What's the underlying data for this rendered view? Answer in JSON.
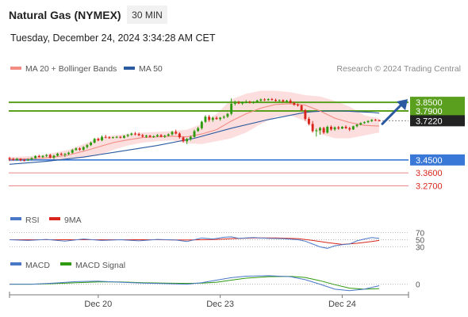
{
  "header": {
    "title": "Natural Gas (NYMEX)",
    "timeframe": "30 MIN",
    "timestamp": "Tuesday, December 24, 2024 3:34:28 AM CET",
    "credit": "Research © 2024 Trading Central"
  },
  "legend": [
    {
      "label": "MA 20 + Bollinger Bands",
      "color": "#f28b82"
    },
    {
      "label": "MA 50",
      "color": "#2b5aa0"
    }
  ],
  "colors": {
    "bull": "#2e9a0e",
    "bear": "#d9251c",
    "resistance": "#5aa01e",
    "support": "#3a78d8",
    "support_light": "#e88888",
    "band": "#fbd3d3",
    "ma20": "#f28b82",
    "ma50": "#2b5aa0",
    "last_price": "#222222",
    "forecast": "#2b5aa0"
  },
  "rsi": {
    "label": "RSI",
    "ma_label": "9MA",
    "levels": [
      "70",
      "50",
      "30"
    ]
  },
  "macd": {
    "label": "MACD",
    "signal_label": "MACD Signal",
    "levels": [
      "0"
    ]
  },
  "chart_data": {
    "type": "candlestick",
    "title": "Natural Gas (NYMEX)",
    "timeframe": "30 MIN",
    "x_ticks": [
      "Dec 20",
      "Dec 23",
      "Dec 24"
    ],
    "ylim": [
      3.24,
      3.9
    ],
    "levels": [
      {
        "value": 3.85,
        "label": "3.8500",
        "kind": "resistance",
        "style": "box"
      },
      {
        "value": 3.79,
        "label": "3.7900",
        "kind": "resistance",
        "style": "box"
      },
      {
        "value": 3.722,
        "label": "3.7220",
        "kind": "last",
        "style": "box"
      },
      {
        "value": 3.45,
        "label": "3.4500",
        "kind": "support",
        "style": "box"
      },
      {
        "value": 3.36,
        "label": "3.3600",
        "kind": "support_light",
        "style": "text"
      },
      {
        "value": 3.27,
        "label": "3.2700",
        "kind": "support_light",
        "style": "text"
      }
    ],
    "candles": [
      [
        3.463,
        3.472,
        3.443,
        3.456
      ],
      [
        3.456,
        3.465,
        3.445,
        3.451
      ],
      [
        3.451,
        3.464,
        3.444,
        3.458
      ],
      [
        3.458,
        3.462,
        3.441,
        3.448
      ],
      [
        3.448,
        3.458,
        3.44,
        3.447
      ],
      [
        3.447,
        3.461,
        3.442,
        3.453
      ],
      [
        3.453,
        3.469,
        3.448,
        3.462
      ],
      [
        3.462,
        3.483,
        3.457,
        3.477
      ],
      [
        3.477,
        3.486,
        3.466,
        3.47
      ],
      [
        3.47,
        3.483,
        3.464,
        3.478
      ],
      [
        3.478,
        3.491,
        3.47,
        3.484
      ],
      [
        3.484,
        3.492,
        3.46,
        3.467
      ],
      [
        3.467,
        3.485,
        3.454,
        3.48
      ],
      [
        3.48,
        3.5,
        3.474,
        3.493
      ],
      [
        3.493,
        3.501,
        3.481,
        3.487
      ],
      [
        3.487,
        3.498,
        3.47,
        3.492
      ],
      [
        3.492,
        3.507,
        3.483,
        3.5
      ],
      [
        3.5,
        3.527,
        3.493,
        3.519
      ],
      [
        3.519,
        3.537,
        3.514,
        3.53
      ],
      [
        3.53,
        3.537,
        3.513,
        3.521
      ],
      [
        3.521,
        3.545,
        3.513,
        3.539
      ],
      [
        3.539,
        3.56,
        3.53,
        3.553
      ],
      [
        3.553,
        3.577,
        3.546,
        3.57
      ],
      [
        3.57,
        3.603,
        3.565,
        3.596
      ],
      [
        3.596,
        3.605,
        3.58,
        3.586
      ],
      [
        3.586,
        3.62,
        3.58,
        3.61
      ],
      [
        3.61,
        3.624,
        3.6,
        3.607
      ],
      [
        3.607,
        3.615,
        3.597,
        3.603
      ],
      [
        3.603,
        3.612,
        3.598,
        3.608
      ],
      [
        3.608,
        3.616,
        3.601,
        3.61
      ],
      [
        3.61,
        3.616,
        3.599,
        3.604
      ],
      [
        3.604,
        3.623,
        3.599,
        3.617
      ],
      [
        3.617,
        3.632,
        3.608,
        3.624
      ],
      [
        3.624,
        3.64,
        3.618,
        3.633
      ],
      [
        3.633,
        3.644,
        3.62,
        3.63
      ],
      [
        3.63,
        3.64,
        3.615,
        3.621
      ],
      [
        3.621,
        3.631,
        3.607,
        3.612
      ],
      [
        3.612,
        3.625,
        3.603,
        3.619
      ],
      [
        3.619,
        3.624,
        3.606,
        3.61
      ],
      [
        3.61,
        3.621,
        3.603,
        3.614
      ],
      [
        3.614,
        3.63,
        3.608,
        3.622
      ],
      [
        3.622,
        3.63,
        3.607,
        3.611
      ],
      [
        3.611,
        3.625,
        3.603,
        3.618
      ],
      [
        3.618,
        3.634,
        3.613,
        3.628
      ],
      [
        3.628,
        3.652,
        3.62,
        3.645
      ],
      [
        3.645,
        3.66,
        3.627,
        3.633
      ],
      [
        3.633,
        3.641,
        3.598,
        3.607
      ],
      [
        3.607,
        3.612,
        3.571,
        3.58
      ],
      [
        3.58,
        3.603,
        3.56,
        3.596
      ],
      [
        3.596,
        3.618,
        3.583,
        3.61
      ],
      [
        3.61,
        3.66,
        3.605,
        3.65
      ],
      [
        3.65,
        3.68,
        3.645,
        3.67
      ],
      [
        3.67,
        3.722,
        3.66,
        3.715
      ],
      [
        3.715,
        3.76,
        3.708,
        3.75
      ],
      [
        3.75,
        3.762,
        3.715,
        3.728
      ],
      [
        3.728,
        3.75,
        3.715,
        3.742
      ],
      [
        3.742,
        3.753,
        3.729,
        3.734
      ],
      [
        3.734,
        3.748,
        3.722,
        3.744
      ],
      [
        3.744,
        3.76,
        3.735,
        3.75
      ],
      [
        3.75,
        3.776,
        3.742,
        3.77
      ],
      [
        3.77,
        3.877,
        3.76,
        3.84
      ],
      [
        3.84,
        3.862,
        3.828,
        3.848
      ],
      [
        3.848,
        3.86,
        3.838,
        3.842
      ],
      [
        3.842,
        3.855,
        3.832,
        3.85
      ],
      [
        3.85,
        3.866,
        3.843,
        3.853
      ],
      [
        3.853,
        3.861,
        3.842,
        3.848
      ],
      [
        3.848,
        3.858,
        3.84,
        3.853
      ],
      [
        3.853,
        3.868,
        3.848,
        3.862
      ],
      [
        3.862,
        3.876,
        3.855,
        3.87
      ],
      [
        3.87,
        3.878,
        3.859,
        3.865
      ],
      [
        3.865,
        3.878,
        3.86,
        3.872
      ],
      [
        3.872,
        3.88,
        3.862,
        3.867
      ],
      [
        3.867,
        3.875,
        3.855,
        3.86
      ],
      [
        3.86,
        3.87,
        3.852,
        3.865
      ],
      [
        3.865,
        3.87,
        3.85,
        3.855
      ],
      [
        3.855,
        3.868,
        3.849,
        3.862
      ],
      [
        3.862,
        3.874,
        3.842,
        3.846
      ],
      [
        3.846,
        3.853,
        3.826,
        3.833
      ],
      [
        3.833,
        3.842,
        3.82,
        3.828
      ],
      [
        3.828,
        3.834,
        3.79,
        3.795
      ],
      [
        3.795,
        3.803,
        3.722,
        3.735
      ],
      [
        3.735,
        3.748,
        3.69,
        3.7
      ],
      [
        3.7,
        3.72,
        3.64,
        3.65
      ],
      [
        3.65,
        3.668,
        3.612,
        3.655
      ],
      [
        3.655,
        3.68,
        3.625,
        3.672
      ],
      [
        3.672,
        3.68,
        3.63,
        3.64
      ],
      [
        3.64,
        3.688,
        3.633,
        3.68
      ],
      [
        3.68,
        3.69,
        3.652,
        3.662
      ],
      [
        3.662,
        3.682,
        3.652,
        3.676
      ],
      [
        3.676,
        3.686,
        3.66,
        3.668
      ],
      [
        3.668,
        3.685,
        3.664,
        3.68
      ],
      [
        3.68,
        3.69,
        3.665,
        3.67
      ],
      [
        3.67,
        3.68,
        3.65,
        3.662
      ],
      [
        3.662,
        3.688,
        3.658,
        3.684
      ],
      [
        3.684,
        3.7,
        3.676,
        3.695
      ],
      [
        3.695,
        3.712,
        3.69,
        3.706
      ],
      [
        3.706,
        3.718,
        3.7,
        3.712
      ],
      [
        3.712,
        3.726,
        3.706,
        3.72
      ],
      [
        3.72,
        3.733,
        3.714,
        3.728
      ],
      [
        3.728,
        3.735,
        3.72,
        3.726
      ],
      [
        3.726,
        3.73,
        3.717,
        3.722
      ]
    ],
    "ma20": [
      [
        0,
        3.455
      ],
      [
        8,
        3.46
      ],
      [
        12,
        3.47
      ],
      [
        16,
        3.485
      ],
      [
        20,
        3.51
      ],
      [
        24,
        3.54
      ],
      [
        28,
        3.57
      ],
      [
        32,
        3.59
      ],
      [
        36,
        3.605
      ],
      [
        40,
        3.61
      ],
      [
        44,
        3.615
      ],
      [
        48,
        3.61
      ],
      [
        52,
        3.63
      ],
      [
        56,
        3.66
      ],
      [
        60,
        3.72
      ],
      [
        64,
        3.77
      ],
      [
        68,
        3.81
      ],
      [
        72,
        3.835
      ],
      [
        76,
        3.84
      ],
      [
        80,
        3.83
      ],
      [
        84,
        3.79
      ],
      [
        88,
        3.74
      ],
      [
        92,
        3.71
      ],
      [
        96,
        3.69
      ],
      [
        100,
        3.685
      ]
    ],
    "band_upper": [
      [
        0,
        3.47
      ],
      [
        8,
        3.48
      ],
      [
        12,
        3.5
      ],
      [
        16,
        3.52
      ],
      [
        20,
        3.56
      ],
      [
        24,
        3.6
      ],
      [
        28,
        3.62
      ],
      [
        32,
        3.63
      ],
      [
        36,
        3.64
      ],
      [
        40,
        3.645
      ],
      [
        44,
        3.65
      ],
      [
        48,
        3.66
      ],
      [
        52,
        3.7
      ],
      [
        56,
        3.77
      ],
      [
        60,
        3.87
      ],
      [
        64,
        3.91
      ],
      [
        68,
        3.93
      ],
      [
        72,
        3.93
      ],
      [
        76,
        3.92
      ],
      [
        80,
        3.9
      ],
      [
        84,
        3.89
      ],
      [
        88,
        3.86
      ],
      [
        92,
        3.82
      ],
      [
        96,
        3.76
      ],
      [
        100,
        3.74
      ]
    ],
    "band_lower": [
      [
        0,
        3.44
      ],
      [
        8,
        3.445
      ],
      [
        12,
        3.45
      ],
      [
        16,
        3.455
      ],
      [
        20,
        3.465
      ],
      [
        24,
        3.48
      ],
      [
        28,
        3.52
      ],
      [
        32,
        3.55
      ],
      [
        36,
        3.57
      ],
      [
        40,
        3.58
      ],
      [
        44,
        3.585
      ],
      [
        48,
        3.565
      ],
      [
        52,
        3.56
      ],
      [
        56,
        3.58
      ],
      [
        60,
        3.6
      ],
      [
        64,
        3.64
      ],
      [
        68,
        3.7
      ],
      [
        72,
        3.75
      ],
      [
        76,
        3.76
      ],
      [
        80,
        3.72
      ],
      [
        84,
        3.63
      ],
      [
        88,
        3.6
      ],
      [
        92,
        3.6
      ],
      [
        96,
        3.62
      ],
      [
        100,
        3.64
      ]
    ],
    "ma50": [
      [
        0,
        3.42
      ],
      [
        10,
        3.44
      ],
      [
        20,
        3.47
      ],
      [
        30,
        3.51
      ],
      [
        40,
        3.55
      ],
      [
        50,
        3.6
      ],
      [
        60,
        3.67
      ],
      [
        70,
        3.73
      ],
      [
        80,
        3.78
      ],
      [
        82,
        3.785
      ],
      [
        86,
        3.79
      ],
      [
        90,
        3.79
      ],
      [
        94,
        3.785
      ],
      [
        98,
        3.78
      ],
      [
        100,
        3.775
      ]
    ],
    "rsi_series": [
      [
        0,
        50
      ],
      [
        5,
        48
      ],
      [
        10,
        51
      ],
      [
        15,
        46
      ],
      [
        20,
        52
      ],
      [
        25,
        48
      ],
      [
        30,
        50
      ],
      [
        35,
        47
      ],
      [
        40,
        51
      ],
      [
        45,
        49
      ],
      [
        48,
        45
      ],
      [
        52,
        55
      ],
      [
        55,
        52
      ],
      [
        58,
        57
      ],
      [
        60,
        58
      ],
      [
        62,
        54
      ],
      [
        66,
        56
      ],
      [
        70,
        54
      ],
      [
        74,
        53
      ],
      [
        78,
        50
      ],
      [
        80,
        46
      ],
      [
        82,
        38
      ],
      [
        84,
        30
      ],
      [
        86,
        26
      ],
      [
        88,
        33
      ],
      [
        90,
        36
      ],
      [
        92,
        38
      ],
      [
        94,
        47
      ],
      [
        96,
        52
      ],
      [
        98,
        56
      ],
      [
        100,
        54
      ]
    ],
    "rsi_ma": [
      [
        0,
        50
      ],
      [
        10,
        50
      ],
      [
        20,
        50
      ],
      [
        30,
        50
      ],
      [
        40,
        50
      ],
      [
        48,
        49
      ],
      [
        52,
        50
      ],
      [
        56,
        51
      ],
      [
        60,
        53
      ],
      [
        66,
        55
      ],
      [
        72,
        55
      ],
      [
        78,
        53
      ],
      [
        82,
        48
      ],
      [
        86,
        42
      ],
      [
        90,
        37
      ],
      [
        94,
        40
      ],
      [
        98,
        45
      ],
      [
        100,
        48
      ]
    ],
    "macd_series": [
      [
        0,
        0
      ],
      [
        6,
        0
      ],
      [
        12,
        0.004
      ],
      [
        18,
        0.01
      ],
      [
        24,
        0.012
      ],
      [
        30,
        0.008
      ],
      [
        36,
        0.004
      ],
      [
        42,
        0.002
      ],
      [
        48,
        0
      ],
      [
        52,
        0.006
      ],
      [
        56,
        0.016
      ],
      [
        60,
        0.026
      ],
      [
        64,
        0.032
      ],
      [
        70,
        0.034
      ],
      [
        76,
        0.03
      ],
      [
        80,
        0.018
      ],
      [
        84,
        0
      ],
      [
        88,
        -0.02
      ],
      [
        92,
        -0.026
      ],
      [
        96,
        -0.02
      ],
      [
        100,
        -0.006
      ]
    ],
    "macd_signal": [
      [
        0,
        0
      ],
      [
        6,
        0
      ],
      [
        12,
        0.002
      ],
      [
        18,
        0.006
      ],
      [
        24,
        0.009
      ],
      [
        30,
        0.009
      ],
      [
        36,
        0.006
      ],
      [
        42,
        0.004
      ],
      [
        48,
        0.003
      ],
      [
        52,
        0.004
      ],
      [
        56,
        0.008
      ],
      [
        60,
        0.016
      ],
      [
        64,
        0.024
      ],
      [
        70,
        0.03
      ],
      [
        76,
        0.031
      ],
      [
        80,
        0.027
      ],
      [
        84,
        0.014
      ],
      [
        88,
        -0.002
      ],
      [
        92,
        -0.016
      ],
      [
        96,
        -0.02
      ],
      [
        100,
        -0.018
      ]
    ],
    "forecast": {
      "from": 3.7,
      "to": 3.85
    }
  }
}
